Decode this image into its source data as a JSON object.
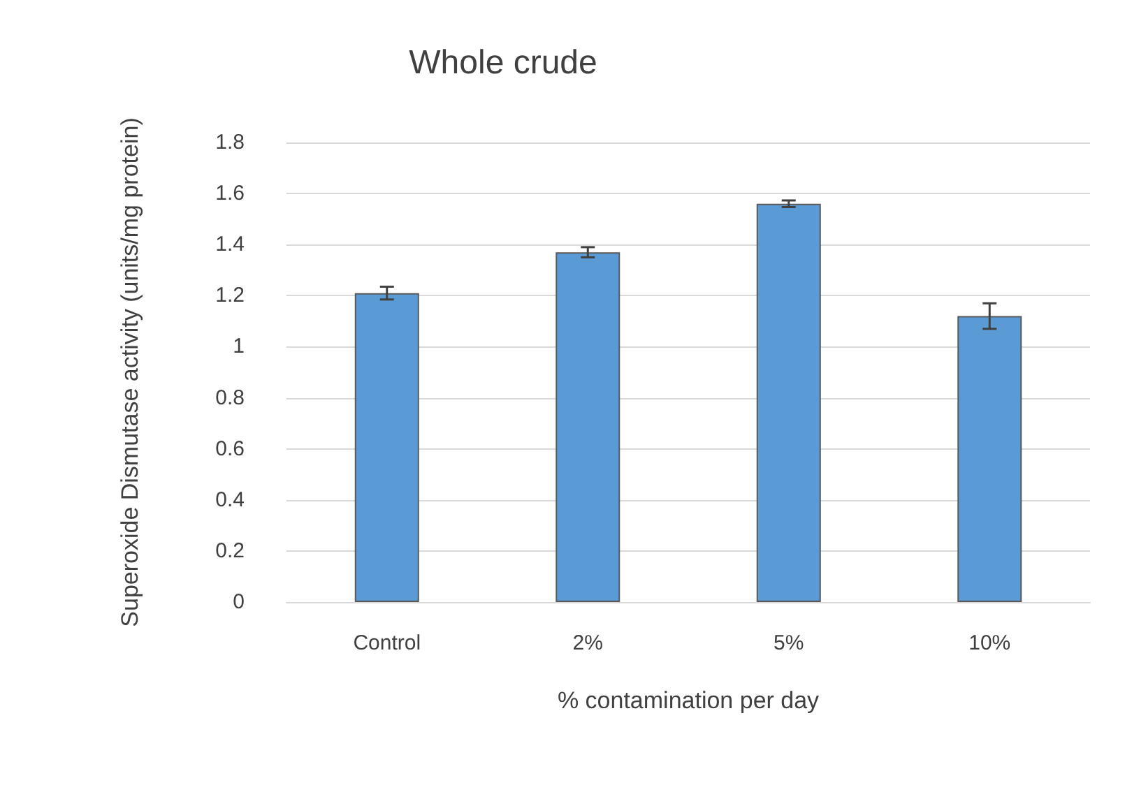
{
  "chart_data": {
    "type": "bar",
    "title": "Whole crude",
    "xlabel": "% contamination per day",
    "ylabel": "Superoxide Dismutase activity (units/mg protein)",
    "categories": [
      "Control",
      "2%",
      "5%",
      "10%"
    ],
    "values": [
      1.21,
      1.37,
      1.56,
      1.12
    ],
    "errors": [
      0.025,
      0.02,
      0.013,
      0.05
    ],
    "color": "#5b9bd5",
    "ylim": [
      0,
      1.8
    ],
    "yticks": [
      0,
      0.2,
      0.4,
      0.6,
      0.8,
      1,
      1.2,
      1.4,
      1.6,
      1.8
    ],
    "grid": "y"
  }
}
